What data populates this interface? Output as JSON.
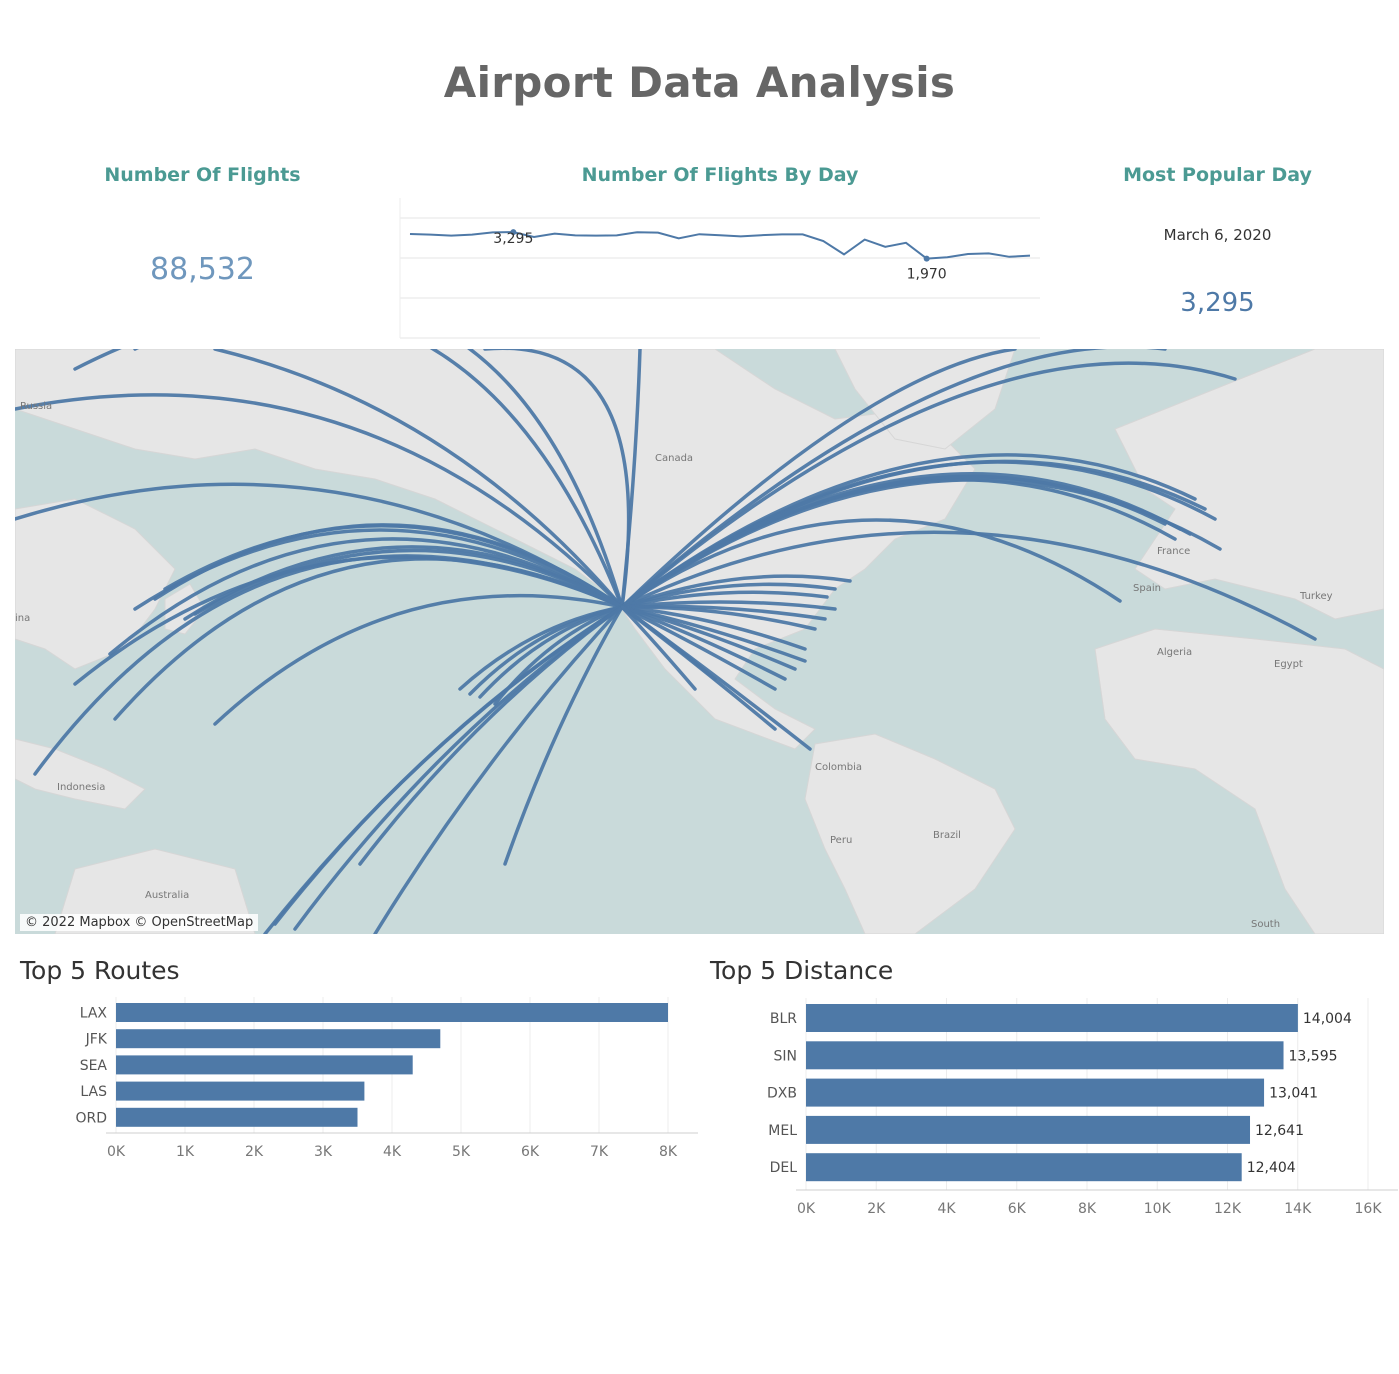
{
  "title": "Airport Data Analysis",
  "kpis": {
    "flights_header": "Number Of Flights",
    "flights_value": "88,532",
    "by_day_header": "Number Of Flights By Day",
    "popular_header": "Most Popular Day",
    "popular_date": "March 6, 2020",
    "popular_value": "3,295"
  },
  "map": {
    "attribution": "© 2022 Mapbox © OpenStreetMap",
    "labels": [
      "Russia",
      "Canada",
      "France",
      "Spain",
      "Turkey",
      "Algeria",
      "Egypt",
      "Colombia",
      "Peru",
      "Brazil",
      "Indonesia",
      "Australia",
      "South",
      "ina"
    ],
    "line_color": "#4e79a7",
    "land_color": "#e6e6e6",
    "water_color": "#c9dada"
  },
  "chart_data": [
    {
      "type": "line",
      "title": "Number Of Flights By Day",
      "values": [
        3200,
        3170,
        3120,
        3170,
        3280,
        3295,
        3050,
        3220,
        3130,
        3120,
        3130,
        3290,
        3270,
        2980,
        3190,
        3140,
        3080,
        3140,
        3180,
        3180,
        2850,
        2180,
        2920,
        2560,
        2760,
        1970,
        2040,
        2200,
        2230,
        2060,
        2120
      ],
      "annotations": [
        {
          "label": "3,295",
          "index": 5
        },
        {
          "label": "1,970",
          "index": 25
        }
      ],
      "ylim": [
        0,
        4000
      ]
    },
    {
      "type": "bar",
      "title": "Top 5 Routes",
      "categories": [
        "LAX",
        "JFK",
        "SEA",
        "LAS",
        "ORD"
      ],
      "values": [
        8000,
        4700,
        4300,
        3600,
        3500
      ],
      "xlim": [
        0,
        8000
      ],
      "ticks": [
        "0K",
        "1K",
        "2K",
        "3K",
        "4K",
        "5K",
        "6K",
        "7K",
        "8K"
      ],
      "color": "#4e79a7"
    },
    {
      "type": "bar",
      "title": "Top 5 Distance",
      "categories": [
        "BLR",
        "SIN",
        "DXB",
        "MEL",
        "DEL"
      ],
      "values": [
        14004,
        13595,
        13041,
        12641,
        12404
      ],
      "labels": [
        "14,004",
        "13,595",
        "13,041",
        "12,641",
        "12,404"
      ],
      "xlim": [
        0,
        16000
      ],
      "ticks": [
        "0K",
        "2K",
        "4K",
        "6K",
        "8K",
        "10K",
        "12K",
        "14K",
        "16K"
      ],
      "color": "#4e79a7"
    }
  ]
}
